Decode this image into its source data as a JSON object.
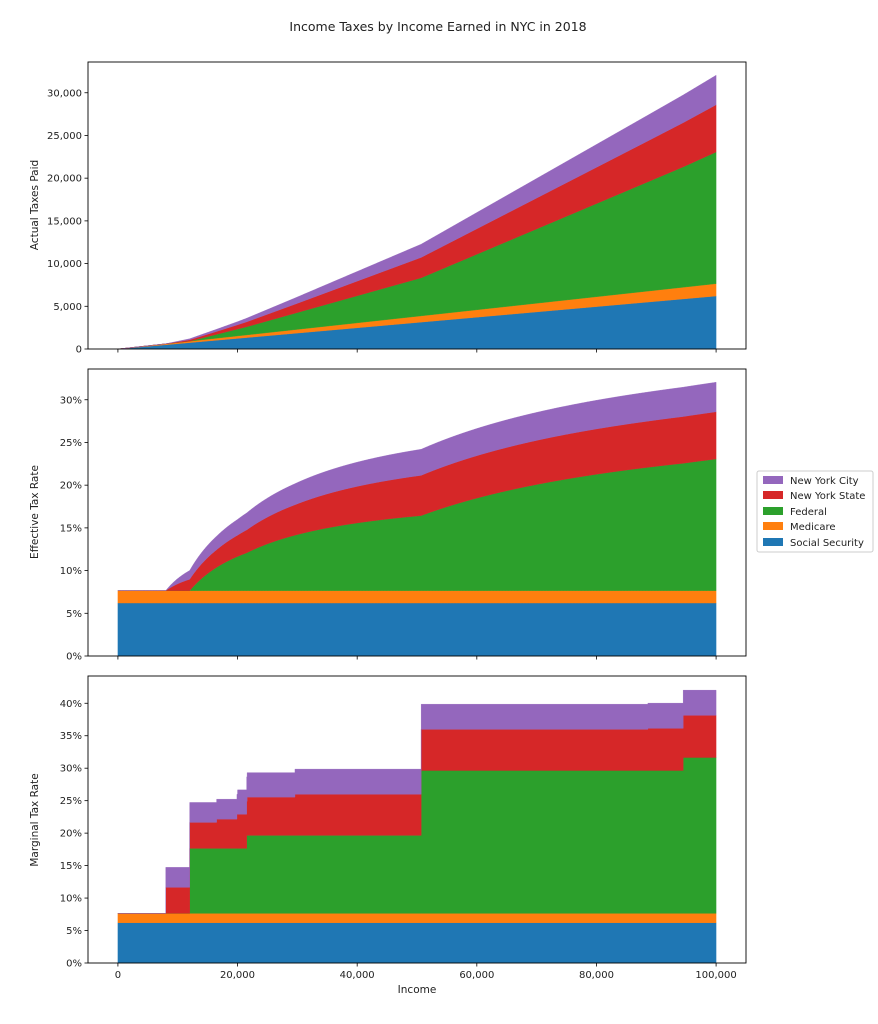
{
  "chart_data": {
    "type": "area",
    "title": "Income Taxes by Income Earned in NYC in 2018",
    "xlabel": "Income",
    "xlim": [
      -5000,
      105000
    ],
    "xticks": [
      0,
      20000,
      40000,
      60000,
      80000,
      100000
    ],
    "xtick_labels": [
      "0",
      "20,000",
      "40,000",
      "60,000",
      "80,000",
      "100,000"
    ],
    "income_range": [
      0,
      100000
    ],
    "legend_position": "right",
    "series": [
      {
        "name": "Social Security",
        "color": "#1f77b4",
        "marginal_rate_brackets": [
          [
            0,
            6.2
          ]
        ]
      },
      {
        "name": "Medicare",
        "color": "#ff7f0e",
        "marginal_rate_brackets": [
          [
            0,
            1.45
          ]
        ]
      },
      {
        "name": "Federal",
        "color": "#2ca02c",
        "marginal_rate_brackets": [
          [
            0,
            0
          ],
          [
            12000,
            10
          ],
          [
            21525,
            12
          ],
          [
            50700,
            22
          ],
          [
            94500,
            24
          ]
        ]
      },
      {
        "name": "New York State",
        "color": "#d62728",
        "marginal_rate_brackets": [
          [
            0,
            0
          ],
          [
            8000,
            4
          ],
          [
            16500,
            4.5
          ],
          [
            19900,
            5.25
          ],
          [
            21600,
            5.9
          ],
          [
            29600,
            6.33
          ],
          [
            88600,
            6.49
          ]
        ]
      },
      {
        "name": "New York City",
        "color": "#9467bd",
        "marginal_rate_brackets": [
          [
            0,
            0
          ],
          [
            8000,
            3.078
          ],
          [
            20000,
            3.762
          ],
          [
            29600,
            3.876
          ]
        ]
      }
    ],
    "legend_order": [
      "New York City",
      "New York State",
      "Federal",
      "Medicare",
      "Social Security"
    ],
    "subplots": [
      {
        "kind": "actual",
        "ylabel": "Actual Taxes Paid",
        "ylim": [
          0,
          33600
        ],
        "yticks": [
          0,
          5000,
          10000,
          15000,
          20000,
          25000,
          30000
        ],
        "ytick_labels": [
          "0",
          "5,000",
          "10,000",
          "15,000",
          "20,000",
          "25,000",
          "30,000"
        ]
      },
      {
        "kind": "effective",
        "ylabel": "Effective Tax Rate",
        "ylim": [
          0,
          33.6
        ],
        "yticks": [
          0,
          5,
          10,
          15,
          20,
          25,
          30
        ],
        "ytick_labels": [
          "0%",
          "5%",
          "10%",
          "15%",
          "20%",
          "25%",
          "30%"
        ]
      },
      {
        "kind": "marginal",
        "ylabel": "Marginal Tax Rate",
        "ylim": [
          0,
          44.2
        ],
        "yticks": [
          0,
          5,
          10,
          15,
          20,
          25,
          30,
          35,
          40
        ],
        "ytick_labels": [
          "0%",
          "5%",
          "10%",
          "15%",
          "20%",
          "25%",
          "30%",
          "35%",
          "40%"
        ]
      }
    ]
  }
}
